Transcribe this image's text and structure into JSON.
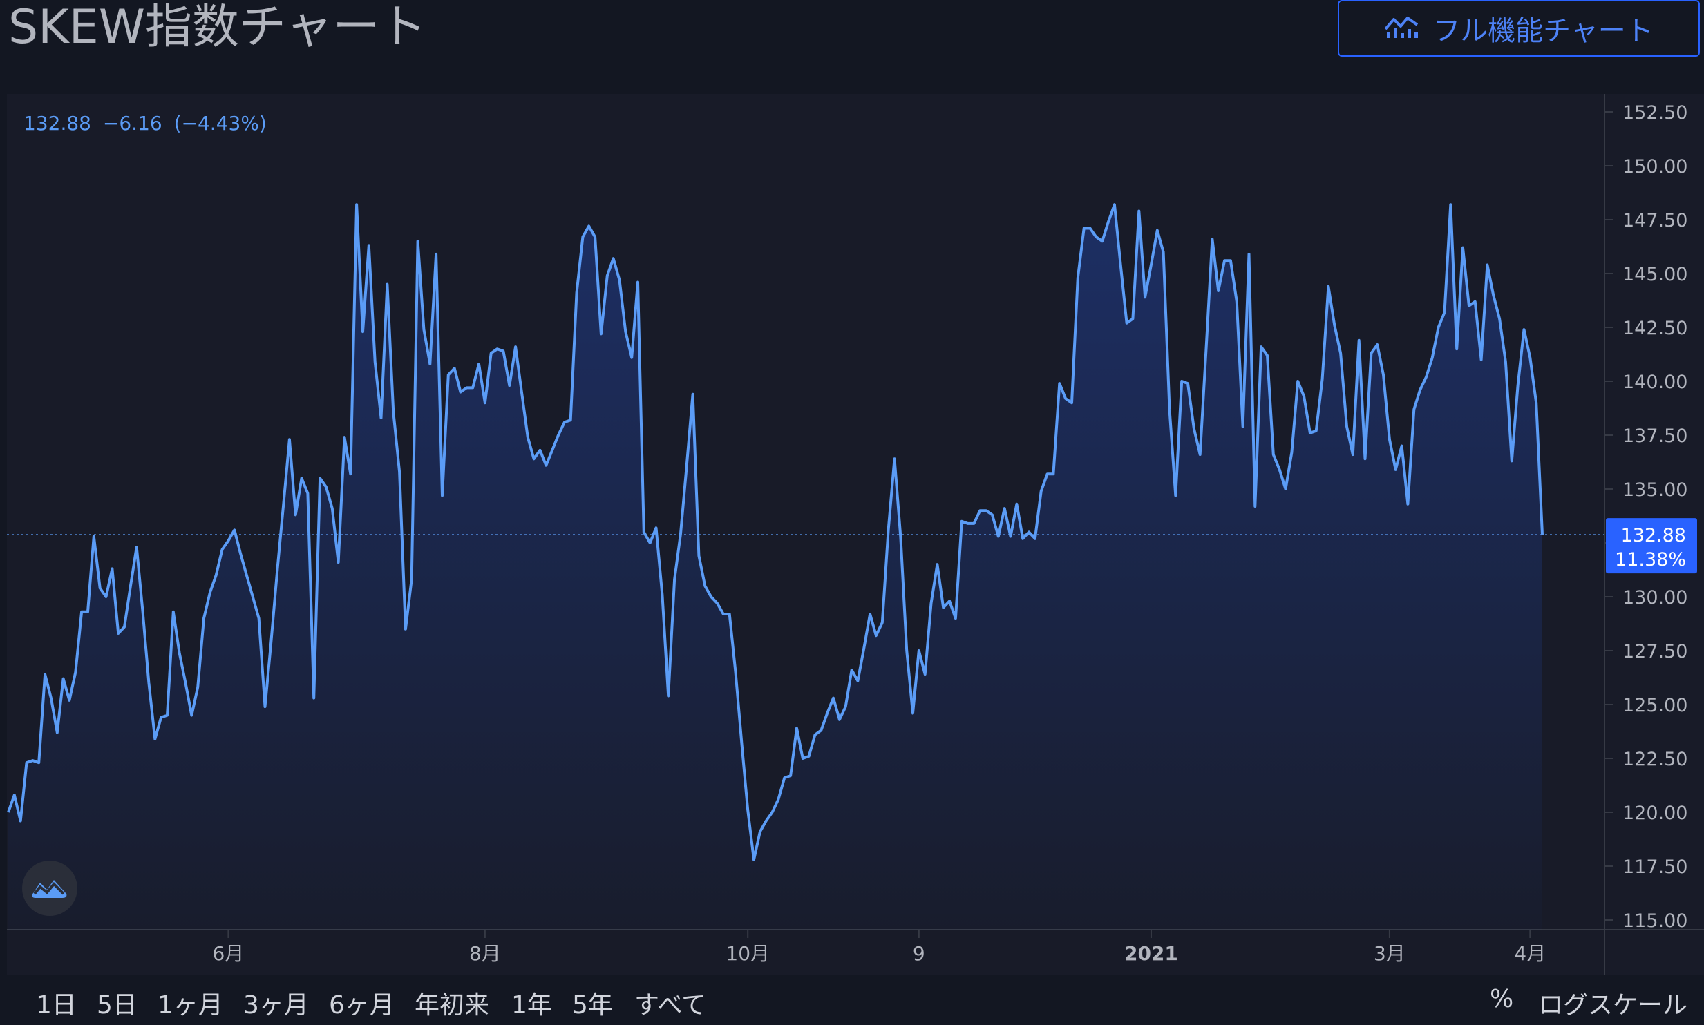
{
  "header": {
    "title": "SKEW指数チャート",
    "full_chart_label": "フル機能チャート",
    "full_chart_icon": "chart-line-icon"
  },
  "legend": {
    "last": "132.88",
    "change": "−6.16",
    "change_pct": "(−4.43%)"
  },
  "price_tag": {
    "price": "132.88",
    "percent": "11.38%"
  },
  "range_buttons": [
    "1日",
    "5日",
    "1ヶ月",
    "3ヶ月",
    "6ヶ月",
    "年初来",
    "1年",
    "5年",
    "すべて"
  ],
  "options": {
    "percent": "%",
    "log": "ログスケール"
  },
  "colors": {
    "background": "#131722",
    "panel": "#181b28",
    "line": "#5b9cf6",
    "accent": "#2962ff",
    "text": "#d1d4dc"
  },
  "chart_data": {
    "type": "area",
    "title": "SKEW指数チャート",
    "ylim": [
      115,
      152.5
    ],
    "y_ticks": [
      "152.50",
      "150.00",
      "147.50",
      "145.00",
      "142.50",
      "140.00",
      "137.50",
      "135.00",
      "132.50",
      "130.00",
      "127.50",
      "125.00",
      "122.50",
      "120.00",
      "117.50",
      "115.00"
    ],
    "x_ticks": [
      {
        "label": "6月",
        "index": 36
      },
      {
        "label": "8月",
        "index": 78
      },
      {
        "label": "10月",
        "index": 121
      },
      {
        "label": "9",
        "index": 149
      },
      {
        "label": "2021",
        "index": 187,
        "bold": true
      },
      {
        "label": "3月",
        "index": 226
      },
      {
        "label": "4月",
        "index": 249
      }
    ],
    "last_value": 132.88,
    "values": [
      120.0,
      120.8,
      119.6,
      122.3,
      122.4,
      122.3,
      126.4,
      125.3,
      123.7,
      126.2,
      125.2,
      126.5,
      129.3,
      129.3,
      132.8,
      130.4,
      130.0,
      131.3,
      128.3,
      128.6,
      130.5,
      132.3,
      129.3,
      126.0,
      123.4,
      124.4,
      124.5,
      129.3,
      127.4,
      126.0,
      124.5,
      125.8,
      129.0,
      130.2,
      131.0,
      132.2,
      132.6,
      133.1,
      132.0,
      131.0,
      130.0,
      129.0,
      124.9,
      127.9,
      131.2,
      134.2,
      137.3,
      133.8,
      135.5,
      134.8,
      125.3,
      135.5,
      135.1,
      134.1,
      131.6,
      137.4,
      135.7,
      148.2,
      142.3,
      146.3,
      140.9,
      138.3,
      144.5,
      138.6,
      135.8,
      128.5,
      130.8,
      146.5,
      142.4,
      140.8,
      145.9,
      134.7,
      140.3,
      140.6,
      139.5,
      139.7,
      139.7,
      140.8,
      139.0,
      141.3,
      141.5,
      141.4,
      139.8,
      141.6,
      139.5,
      137.4,
      136.4,
      136.8,
      136.1,
      136.8,
      137.5,
      138.1,
      138.2,
      144.1,
      146.7,
      147.2,
      146.7,
      142.2,
      144.9,
      145.7,
      144.7,
      142.3,
      141.1,
      144.6,
      133.0,
      132.5,
      133.2,
      130.1,
      125.4,
      130.8,
      132.9,
      136.1,
      139.4,
      131.9,
      130.5,
      130.0,
      129.7,
      129.2,
      129.2,
      126.5,
      123.2,
      120.1,
      117.8,
      119.1,
      119.6,
      120.0,
      120.6,
      121.6,
      121.7,
      123.9,
      122.5,
      122.6,
      123.6,
      123.8,
      124.6,
      125.3,
      124.3,
      124.9,
      126.6,
      126.1,
      127.6,
      129.2,
      128.2,
      128.8,
      133.1,
      136.4,
      132.8,
      127.5,
      124.6,
      127.5,
      126.4,
      129.7,
      131.5,
      129.5,
      129.8,
      129.0,
      133.5,
      133.4,
      133.4,
      134.0,
      134.0,
      133.8,
      132.8,
      134.1,
      132.8,
      134.3,
      132.7,
      133.0,
      132.7,
      134.9,
      135.7,
      135.7,
      139.9,
      139.2,
      139.0,
      144.8,
      147.1,
      147.1,
      146.7,
      146.5,
      147.4,
      148.2,
      145.4,
      142.7,
      142.9,
      147.9,
      143.9,
      145.4,
      147.0,
      146.0,
      138.7,
      134.7,
      140.0,
      139.9,
      137.8,
      136.6,
      141.5,
      146.6,
      144.2,
      145.6,
      145.6,
      143.7,
      137.9,
      145.9,
      134.2,
      141.6,
      141.2,
      136.6,
      135.9,
      135.0,
      136.7,
      140.0,
      139.3,
      137.6,
      137.7,
      140.1,
      144.4,
      142.6,
      141.3,
      137.9,
      136.6,
      141.9,
      136.4,
      141.3,
      141.7,
      140.3,
      137.3,
      135.9,
      137.0,
      134.3,
      138.7,
      139.6,
      140.2,
      141.1,
      142.5,
      143.2,
      148.2,
      141.5,
      146.2,
      143.5,
      143.7,
      141.0,
      145.4,
      144.0,
      142.9,
      140.9,
      136.3,
      139.8,
      142.4,
      141.1,
      139.0,
      132.88
    ]
  }
}
